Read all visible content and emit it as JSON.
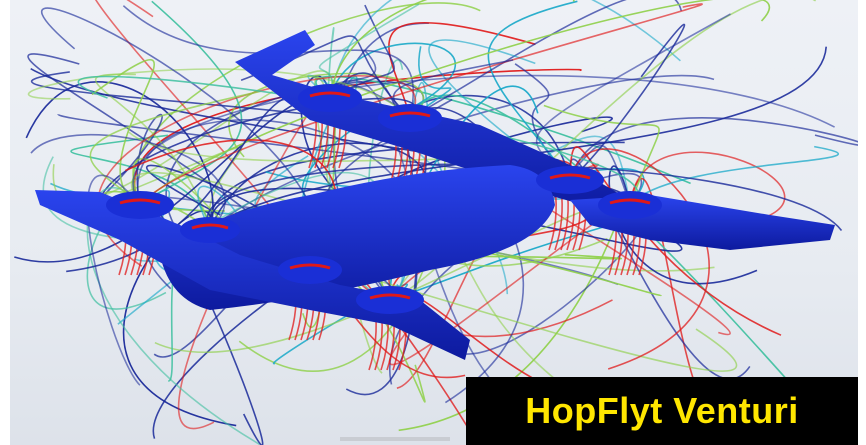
{
  "caption": {
    "text": "HopFlyt Venturi"
  },
  "colors": {
    "body": "#1a2fd6",
    "body_shade": "#0d1a9e",
    "caption_bg": "#000000",
    "caption_text": "#ffe600",
    "streamline_slow": "#1a2a9a",
    "streamline_mid": "#18a8c8",
    "streamline_fast": "#e01818"
  },
  "scene": {
    "subject": "aircraft-cfd-streamlines"
  }
}
